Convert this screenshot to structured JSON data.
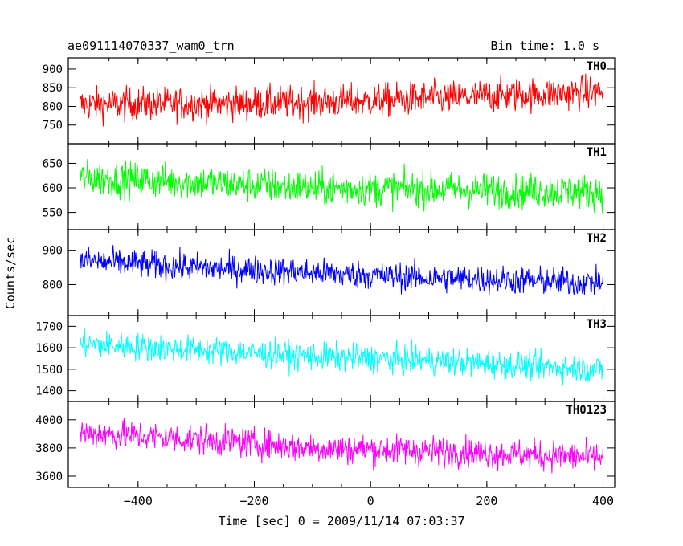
{
  "chart_data": {
    "type": "line",
    "title": "ae091114070337_wam0_trn",
    "subtitle": "Bin time: 1.0 s",
    "xlabel": "Time [sec] 0 = 2009/11/14 07:03:37",
    "ylabel": "Counts/sec",
    "xlim": [
      -520,
      420
    ],
    "xticks": [
      -400,
      -200,
      0,
      200,
      400
    ],
    "x_range": [
      -500,
      400
    ],
    "panels": [
      {
        "name": "TH0",
        "color": "#ff0000",
        "ylim": [
          700,
          930
        ],
        "yticks": [
          750,
          800,
          850,
          900
        ],
        "trend": [
          [
            -500,
            805
          ],
          [
            -200,
            808
          ],
          [
            0,
            815
          ],
          [
            200,
            828
          ],
          [
            400,
            838
          ]
        ],
        "noise": 38
      },
      {
        "name": "TH1",
        "color": "#00ff00",
        "ylim": [
          515,
          690
        ],
        "yticks": [
          550,
          600,
          650
        ],
        "trend": [
          [
            -500,
            620
          ],
          [
            -300,
            612
          ],
          [
            -100,
            600
          ],
          [
            100,
            597
          ],
          [
            400,
            592
          ]
        ],
        "noise": 30
      },
      {
        "name": "TH2",
        "color": "#0000ff",
        "ylim": [
          710,
          960
        ],
        "yticks": [
          800,
          900
        ],
        "trend": [
          [
            -500,
            870
          ],
          [
            -300,
            850
          ],
          [
            -100,
            835
          ],
          [
            100,
            820
          ],
          [
            400,
            805
          ]
        ],
        "noise": 35
      },
      {
        "name": "TH3",
        "color": "#00ffff",
        "ylim": [
          1350,
          1750
        ],
        "yticks": [
          1400,
          1500,
          1600,
          1700
        ],
        "trend": [
          [
            -500,
            1620
          ],
          [
            -300,
            1590
          ],
          [
            -100,
            1560
          ],
          [
            100,
            1540
          ],
          [
            400,
            1500
          ]
        ],
        "noise": 55
      },
      {
        "name": "TH0123",
        "color": "#ff00ff",
        "ylim": [
          3520,
          4130
        ],
        "yticks": [
          3600,
          3800,
          4000
        ],
        "trend": [
          [
            -500,
            3910
          ],
          [
            -300,
            3860
          ],
          [
            -100,
            3800
          ],
          [
            100,
            3780
          ],
          [
            400,
            3730
          ]
        ],
        "noise": 90
      }
    ],
    "grid": false,
    "legend": "panel labels top-right"
  }
}
